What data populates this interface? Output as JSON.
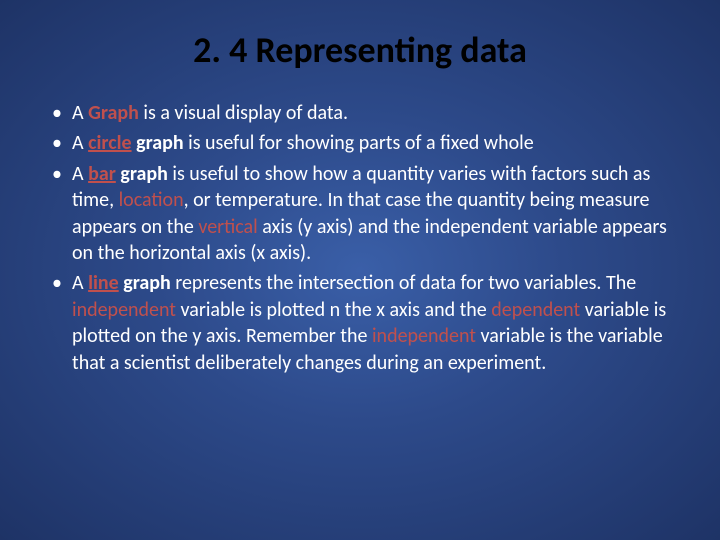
{
  "colors": {
    "background_center": "#3a5fa8",
    "background_edge": "#1e3366",
    "title_color": "#000000",
    "body_text_color": "#ffffff",
    "accent_red": "#c0504d"
  },
  "typography": {
    "title_fontsize": 36,
    "title_weight": 700,
    "body_fontsize": 20,
    "font_family": "Calibri"
  },
  "title": "2. 4 Representing data",
  "bullets": {
    "b1": {
      "t1": "A ",
      "graph": "Graph",
      "t2": " is a visual display of data."
    },
    "b2": {
      "t1": "A ",
      "circle": "circle",
      "space": " ",
      "graph": "graph",
      "t2": " is useful for showing parts of a fixed whole"
    },
    "b3": {
      "t1": "A ",
      "bar": "bar",
      "space": " ",
      "graph": "graph",
      "t2": " is useful to show how a quantity varies with factors such as time, ",
      "location": "location",
      "t3": ", or temperature. In that case the quantity being measure appears on the ",
      "vertical": "vertical",
      "t4": " axis (y axis) and the independent variable appears on the horizontal axis (x axis)."
    },
    "b4": {
      "t1": "A ",
      "line": "line",
      "space": " ",
      "graph": "graph",
      "t2": " represents the intersection of data for two variables. The ",
      "independent1": "independent",
      "t3": " variable is plotted n the x axis and the ",
      "dependent": "dependent",
      "t4": " variable is plotted on the y axis.  Remember the ",
      "independent2": "independent",
      "t5": " variable is the variable that a scientist deliberately changes during an experiment."
    }
  }
}
